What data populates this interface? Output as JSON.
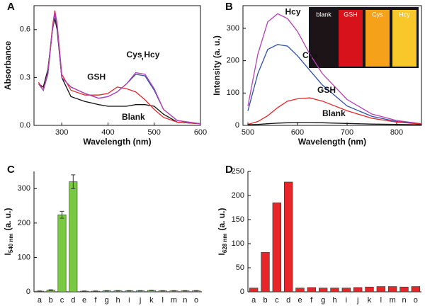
{
  "chart_data": [
    {
      "type": "line",
      "panel": "A",
      "x_label": "Wavelength (nm)",
      "y_label": "Absorbance",
      "x": [
        250,
        260,
        270,
        280,
        285,
        290,
        300,
        320,
        350,
        380,
        400,
        420,
        440,
        460,
        480,
        500,
        520,
        550,
        600
      ],
      "xlim": [
        240,
        600
      ],
      "xticks": [
        300,
        400,
        500,
        600
      ],
      "ylim": [
        0,
        0.75
      ],
      "yticks": [
        {
          "value": 0,
          "label": "0.0"
        },
        0.3,
        0.6
      ],
      "series": [
        {
          "name": "Blank",
          "color": "#111111",
          "values": [
            0.26,
            0.24,
            0.35,
            0.6,
            0.67,
            0.6,
            0.3,
            0.18,
            0.15,
            0.13,
            0.12,
            0.12,
            0.12,
            0.13,
            0.13,
            0.12,
            0.07,
            0.02,
            0.01
          ]
        },
        {
          "name": "GSH",
          "color": "#e8262a",
          "values": [
            0.27,
            0.22,
            0.33,
            0.62,
            0.72,
            0.64,
            0.32,
            0.22,
            0.19,
            0.19,
            0.2,
            0.24,
            0.23,
            0.21,
            0.16,
            0.1,
            0.05,
            0.02,
            0.01
          ]
        },
        {
          "name": "Cys",
          "color": "#2e4fa8",
          "values": [
            0.26,
            0.22,
            0.32,
            0.6,
            0.7,
            0.62,
            0.3,
            0.24,
            0.2,
            0.17,
            0.18,
            0.21,
            0.26,
            0.32,
            0.31,
            0.22,
            0.1,
            0.03,
            0.01
          ]
        },
        {
          "name": "Hcy",
          "color": "#b53fb5",
          "values": [
            0.26,
            0.22,
            0.33,
            0.6,
            0.71,
            0.63,
            0.3,
            0.24,
            0.2,
            0.17,
            0.18,
            0.21,
            0.26,
            0.33,
            0.32,
            0.23,
            0.1,
            0.03,
            0.01
          ]
        }
      ],
      "separator": ","
    },
    {
      "type": "line",
      "panel": "B",
      "x_label": "Wavelength (nm)",
      "y_label": "Intensity (a. u.)",
      "x": [
        500,
        520,
        540,
        560,
        580,
        600,
        625,
        650,
        700,
        750,
        800,
        850
      ],
      "xlim": [
        490,
        850
      ],
      "xticks": [
        500,
        600,
        700,
        800
      ],
      "ylim": [
        0,
        370
      ],
      "yticks": [
        0,
        100,
        200,
        300
      ],
      "series": [
        {
          "name": "Hcy",
          "color": "#b53fb5",
          "values": [
            60,
            220,
            320,
            345,
            330,
            290,
            220,
            160,
            80,
            35,
            15,
            5
          ]
        },
        {
          "name": "Cys",
          "color": "#2e4fa8",
          "values": [
            45,
            160,
            235,
            250,
            245,
            215,
            170,
            125,
            60,
            28,
            12,
            4
          ]
        },
        {
          "name": "GSH",
          "color": "#e8262a",
          "values": [
            3,
            12,
            30,
            55,
            75,
            82,
            85,
            75,
            45,
            22,
            10,
            4
          ]
        },
        {
          "name": "Blank",
          "color": "#111111",
          "values": [
            2,
            3,
            5,
            7,
            8,
            9,
            9,
            8,
            6,
            4,
            3,
            2
          ]
        }
      ],
      "inset_labels": [
        "blank",
        "GSH",
        "Cys",
        "Hcy"
      ]
    },
    {
      "type": "bar",
      "panel": "C",
      "y_label": [
        "I",
        "540 nm",
        "(a. u.)"
      ],
      "color": "#7ac943",
      "categories": [
        "a",
        "b",
        "c",
        "d",
        "e",
        "f",
        "g",
        "h",
        "i",
        "j",
        "k",
        "l",
        "m",
        "n",
        "o"
      ],
      "values": [
        2,
        5,
        224,
        320,
        2,
        2,
        3,
        3,
        3,
        3,
        4,
        3,
        3,
        3,
        3
      ],
      "errors": [
        0.5,
        1,
        10,
        20,
        0.5,
        0.5,
        0.5,
        0.5,
        0.5,
        0.5,
        0.5,
        0.5,
        0.5,
        0.5,
        0.5
      ],
      "ylim": [
        0,
        350
      ],
      "yticks": [
        0,
        100,
        200,
        300
      ]
    },
    {
      "type": "bar",
      "panel": "D",
      "y_label": [
        "I",
        "628 nm",
        "(a. u.)"
      ],
      "color": "#e8262a",
      "categories": [
        "a",
        "b",
        "c",
        "d",
        "e",
        "f",
        "g",
        "h",
        "i",
        "j",
        "k",
        "l",
        "m",
        "n",
        "o"
      ],
      "values": [
        8,
        82,
        185,
        228,
        8,
        9,
        8,
        8,
        8,
        9,
        10,
        11,
        11,
        10,
        11
      ],
      "ylim": [
        0,
        250
      ],
      "yticks": [
        0,
        50,
        100,
        150,
        200,
        250
      ]
    }
  ]
}
